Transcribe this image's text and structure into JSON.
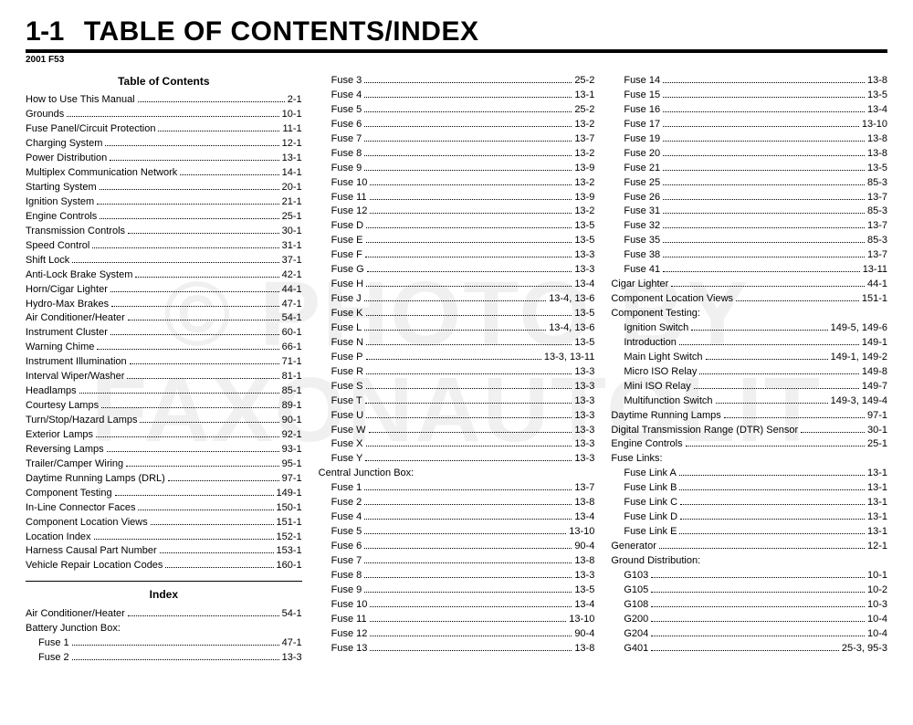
{
  "heading": {
    "section_number": "1-1",
    "title": "TABLE OF CONTENTS/INDEX",
    "subhead": "2001 F53"
  },
  "watermark": {
    "line1": "© PHOTO BY",
    "line2": "FAXONAUTOLIT"
  },
  "col1": {
    "toc_title": "Table of Contents",
    "toc": [
      {
        "label": "How to Use This Manual",
        "page": "2-1"
      },
      {
        "label": "Grounds",
        "page": "10-1"
      },
      {
        "label": "Fuse Panel/Circuit Protection",
        "page": "11-1"
      },
      {
        "label": "Charging System",
        "page": "12-1"
      },
      {
        "label": "Power Distribution",
        "page": "13-1"
      },
      {
        "label": "Multiplex Communication Network",
        "page": "14-1"
      },
      {
        "label": "Starting System",
        "page": "20-1"
      },
      {
        "label": "Ignition System",
        "page": "21-1"
      },
      {
        "label": "Engine Controls",
        "page": "25-1"
      },
      {
        "label": "Transmission Controls",
        "page": "30-1"
      },
      {
        "label": "Speed Control",
        "page": "31-1"
      },
      {
        "label": "Shift Lock",
        "page": "37-1"
      },
      {
        "label": "Anti-Lock Brake System",
        "page": "42-1"
      },
      {
        "label": "Horn/Cigar Lighter",
        "page": "44-1"
      },
      {
        "label": "Hydro-Max Brakes",
        "page": "47-1"
      },
      {
        "label": "Air Conditioner/Heater",
        "page": "54-1"
      },
      {
        "label": "Instrument Cluster",
        "page": "60-1"
      },
      {
        "label": "Warning Chime",
        "page": "66-1"
      },
      {
        "label": "Instrument Illumination",
        "page": "71-1"
      },
      {
        "label": "Interval Wiper/Washer",
        "page": "81-1"
      },
      {
        "label": "Headlamps",
        "page": "85-1"
      },
      {
        "label": "Courtesy Lamps",
        "page": "89-1"
      },
      {
        "label": "Turn/Stop/Hazard Lamps",
        "page": "90-1"
      },
      {
        "label": "Exterior Lamps",
        "page": "92-1"
      },
      {
        "label": "Reversing Lamps",
        "page": "93-1"
      },
      {
        "label": "Trailer/Camper Wiring",
        "page": "95-1"
      },
      {
        "label": "Daytime Running Lamps (DRL)",
        "page": "97-1"
      },
      {
        "label": "Component Testing",
        "page": "149-1"
      },
      {
        "label": "In-Line Connector Faces",
        "page": "150-1"
      },
      {
        "label": "Component Location Views",
        "page": "151-1"
      },
      {
        "label": "Location Index",
        "page": "152-1"
      },
      {
        "label": "Harness Causal Part Number",
        "page": "153-1"
      },
      {
        "label": "Vehicle Repair Location Codes",
        "page": "160-1"
      }
    ],
    "index_title": "Index",
    "index": [
      {
        "label": "Air Conditioner/Heater",
        "page": "54-1",
        "indent": 0
      },
      {
        "label": "Battery Junction Box:",
        "page": "",
        "indent": 0
      },
      {
        "label": "Fuse 1",
        "page": "47-1",
        "indent": 1
      },
      {
        "label": "Fuse 2",
        "page": "13-3",
        "indent": 1
      }
    ]
  },
  "col2": {
    "items": [
      {
        "label": "Fuse 3",
        "page": "25-2",
        "indent": 1
      },
      {
        "label": "Fuse 4",
        "page": "13-1",
        "indent": 1
      },
      {
        "label": "Fuse 5",
        "page": "25-2",
        "indent": 1
      },
      {
        "label": "Fuse 6",
        "page": "13-2",
        "indent": 1
      },
      {
        "label": "Fuse 7",
        "page": "13-7",
        "indent": 1
      },
      {
        "label": "Fuse 8",
        "page": "13-2",
        "indent": 1
      },
      {
        "label": "Fuse 9",
        "page": "13-9",
        "indent": 1
      },
      {
        "label": "Fuse 10",
        "page": "13-2",
        "indent": 1
      },
      {
        "label": "Fuse 11",
        "page": "13-9",
        "indent": 1
      },
      {
        "label": "Fuse 12",
        "page": "13-2",
        "indent": 1
      },
      {
        "label": "Fuse D",
        "page": "13-5",
        "indent": 1
      },
      {
        "label": "Fuse E",
        "page": "13-5",
        "indent": 1
      },
      {
        "label": "Fuse F",
        "page": "13-3",
        "indent": 1
      },
      {
        "label": "Fuse G",
        "page": "13-3",
        "indent": 1
      },
      {
        "label": "Fuse H",
        "page": "13-4",
        "indent": 1
      },
      {
        "label": "Fuse J",
        "page": "13-4, 13-6",
        "indent": 1
      },
      {
        "label": "Fuse K",
        "page": "13-5",
        "indent": 1
      },
      {
        "label": "Fuse L",
        "page": "13-4, 13-6",
        "indent": 1
      },
      {
        "label": "Fuse N",
        "page": "13-5",
        "indent": 1
      },
      {
        "label": "Fuse P",
        "page": "13-3, 13-11",
        "indent": 1
      },
      {
        "label": "Fuse R",
        "page": "13-3",
        "indent": 1
      },
      {
        "label": "Fuse S",
        "page": "13-3",
        "indent": 1
      },
      {
        "label": "Fuse T",
        "page": "13-3",
        "indent": 1
      },
      {
        "label": "Fuse U",
        "page": "13-3",
        "indent": 1
      },
      {
        "label": "Fuse W",
        "page": "13-3",
        "indent": 1
      },
      {
        "label": "Fuse X",
        "page": "13-3",
        "indent": 1
      },
      {
        "label": "Fuse Y",
        "page": "13-3",
        "indent": 1
      },
      {
        "label": "Central Junction Box:",
        "page": "",
        "indent": 0
      },
      {
        "label": "Fuse 1",
        "page": "13-7",
        "indent": 1
      },
      {
        "label": "Fuse 2",
        "page": "13-8",
        "indent": 1
      },
      {
        "label": "Fuse 4",
        "page": "13-4",
        "indent": 1
      },
      {
        "label": "Fuse 5",
        "page": "13-10",
        "indent": 1
      },
      {
        "label": "Fuse 6",
        "page": "90-4",
        "indent": 1
      },
      {
        "label": "Fuse 7",
        "page": "13-8",
        "indent": 1
      },
      {
        "label": "Fuse 8",
        "page": "13-3",
        "indent": 1
      },
      {
        "label": "Fuse 9",
        "page": "13-5",
        "indent": 1
      },
      {
        "label": "Fuse 10",
        "page": "13-4",
        "indent": 1
      },
      {
        "label": "Fuse 11",
        "page": "13-10",
        "indent": 1
      },
      {
        "label": "Fuse 12",
        "page": "90-4",
        "indent": 1
      },
      {
        "label": "Fuse 13",
        "page": "13-8",
        "indent": 1
      }
    ]
  },
  "col3": {
    "items": [
      {
        "label": "Fuse 14",
        "page": "13-8",
        "indent": 1
      },
      {
        "label": "Fuse 15",
        "page": "13-5",
        "indent": 1
      },
      {
        "label": "Fuse 16",
        "page": "13-4",
        "indent": 1
      },
      {
        "label": "Fuse 17",
        "page": "13-10",
        "indent": 1
      },
      {
        "label": "Fuse 19",
        "page": "13-8",
        "indent": 1
      },
      {
        "label": "Fuse 20",
        "page": "13-8",
        "indent": 1
      },
      {
        "label": "Fuse 21",
        "page": "13-5",
        "indent": 1
      },
      {
        "label": "Fuse 25",
        "page": "85-3",
        "indent": 1
      },
      {
        "label": "Fuse 26",
        "page": "13-7",
        "indent": 1
      },
      {
        "label": "Fuse 31",
        "page": "85-3",
        "indent": 1
      },
      {
        "label": "Fuse 32",
        "page": "13-7",
        "indent": 1
      },
      {
        "label": "Fuse 35",
        "page": "85-3",
        "indent": 1
      },
      {
        "label": "Fuse 38",
        "page": "13-7",
        "indent": 1
      },
      {
        "label": "Fuse 41",
        "page": "13-11",
        "indent": 1
      },
      {
        "label": "Cigar Lighter",
        "page": "44-1",
        "indent": 0
      },
      {
        "label": "Component Location Views",
        "page": "151-1",
        "indent": 0
      },
      {
        "label": "Component Testing:",
        "page": "",
        "indent": 0
      },
      {
        "label": "Ignition Switch",
        "page": "149-5, 149-6",
        "indent": 1
      },
      {
        "label": "Introduction",
        "page": "149-1",
        "indent": 1
      },
      {
        "label": "Main Light Switch",
        "page": "149-1, 149-2",
        "indent": 1
      },
      {
        "label": "Micro ISO Relay",
        "page": "149-8",
        "indent": 1
      },
      {
        "label": "Mini ISO Relay",
        "page": "149-7",
        "indent": 1
      },
      {
        "label": "Multifunction Switch",
        "page": "149-3, 149-4",
        "indent": 1
      },
      {
        "label": "Daytime Running Lamps",
        "page": "97-1",
        "indent": 0
      },
      {
        "label": "Digital Transmission Range (DTR) Sensor",
        "page": "30-1",
        "indent": 0
      },
      {
        "label": "Engine Controls",
        "page": "25-1",
        "indent": 0
      },
      {
        "label": "Fuse Links:",
        "page": "",
        "indent": 0
      },
      {
        "label": "Fuse Link A",
        "page": "13-1",
        "indent": 1
      },
      {
        "label": "Fuse Link B",
        "page": "13-1",
        "indent": 1
      },
      {
        "label": "Fuse Link C",
        "page": "13-1",
        "indent": 1
      },
      {
        "label": "Fuse Link D",
        "page": "13-1",
        "indent": 1
      },
      {
        "label": "Fuse Link E",
        "page": "13-1",
        "indent": 1
      },
      {
        "label": "Generator",
        "page": "12-1",
        "indent": 0
      },
      {
        "label": "Ground Distribution:",
        "page": "",
        "indent": 0
      },
      {
        "label": "G103",
        "page": "10-1",
        "indent": 1
      },
      {
        "label": "G105",
        "page": "10-2",
        "indent": 1
      },
      {
        "label": "G108",
        "page": "10-3",
        "indent": 1
      },
      {
        "label": "G200",
        "page": "10-4",
        "indent": 1
      },
      {
        "label": "G204",
        "page": "10-4",
        "indent": 1
      },
      {
        "label": "G401",
        "page": "25-3, 95-3",
        "indent": 1
      }
    ]
  }
}
